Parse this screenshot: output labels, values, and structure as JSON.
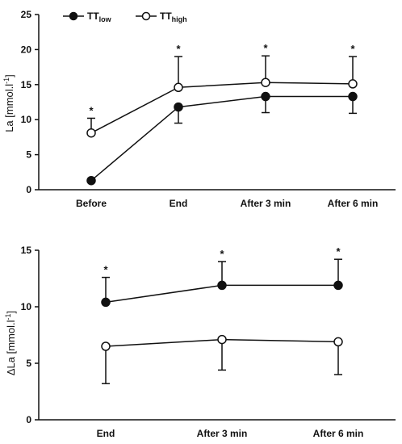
{
  "chart_data": [
    {
      "type": "line",
      "title": "",
      "xlabel": "",
      "ylabel": "La [mmol.l -1]",
      "ylabel_main": "La [mmol.l",
      "ylabel_sup": "-1",
      "ylabel_close": "]",
      "ylim": [
        0,
        25
      ],
      "yticks": [
        0,
        5,
        10,
        15,
        20,
        25
      ],
      "categories": [
        "Before",
        "End",
        "After 3 min",
        "After 6 min"
      ],
      "legend": {
        "position": "top-left",
        "entries": [
          {
            "base": "TT",
            "sub": "low",
            "marker": "filled"
          },
          {
            "base": "TT",
            "sub": "high",
            "marker": "open"
          }
        ]
      },
      "series": [
        {
          "name": "TTlow",
          "marker": "filled",
          "values": [
            1.3,
            11.8,
            13.3,
            13.3
          ],
          "error_low": [
            null,
            2.3,
            2.3,
            2.4
          ],
          "error_high": [
            null,
            null,
            null,
            null
          ]
        },
        {
          "name": "TThigh",
          "marker": "open",
          "values": [
            8.1,
            14.6,
            15.3,
            15.1
          ],
          "error_low": [
            null,
            null,
            null,
            null
          ],
          "error_high": [
            2.1,
            4.4,
            3.8,
            3.9
          ]
        }
      ],
      "significance": [
        "*",
        "*",
        "*",
        "*"
      ]
    },
    {
      "type": "line",
      "title": "",
      "xlabel": "",
      "ylabel": "ΔLa [mmol.l -1]",
      "ylabel_main": "ΔLa [mmol.l",
      "ylabel_sup": "-1",
      "ylabel_close": "]",
      "ylim": [
        0,
        15
      ],
      "yticks": [
        0,
        5,
        10,
        15
      ],
      "categories": [
        "End",
        "After 3 min",
        "After 6 min"
      ],
      "series": [
        {
          "name": "TTlow",
          "marker": "filled",
          "values": [
            10.4,
            11.9,
            11.9
          ],
          "error_low": [
            null,
            null,
            null
          ],
          "error_high": [
            2.2,
            2.1,
            2.3
          ]
        },
        {
          "name": "TThigh",
          "marker": "open",
          "values": [
            6.5,
            7.1,
            6.9
          ],
          "error_low": [
            3.3,
            2.7,
            2.9
          ],
          "error_high": [
            null,
            null,
            null
          ]
        }
      ],
      "significance": [
        "*",
        "*",
        "*"
      ]
    }
  ]
}
